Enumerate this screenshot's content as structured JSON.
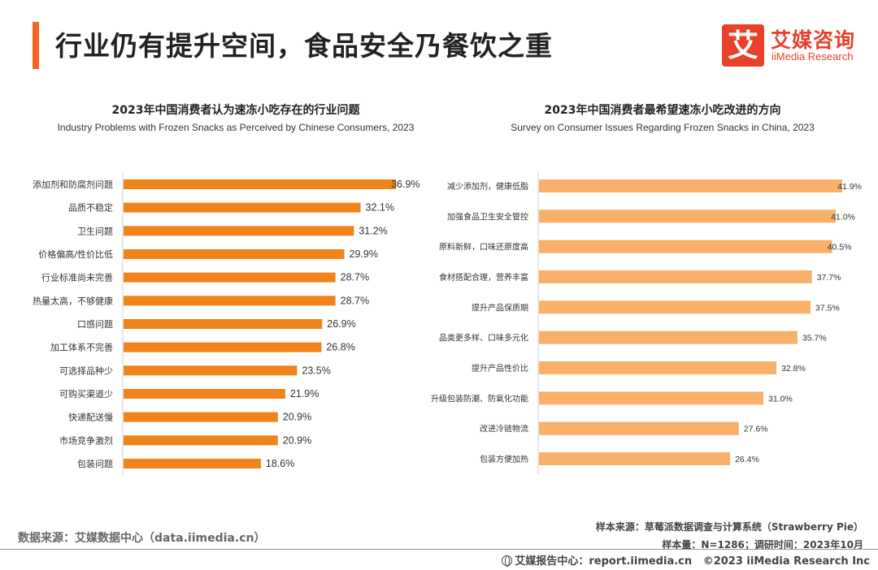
{
  "header": {
    "title": "行业仍有提升空间，食品安全乃餐饮之重",
    "accent_color": "#f26522"
  },
  "logo": {
    "glyph": "艾",
    "name_cn": "艾媒咨询",
    "name_en": "iiMedia Research",
    "color": "#e8402a"
  },
  "chart_data": [
    {
      "type": "bar",
      "orientation": "horizontal",
      "title": "2023年中国消费者认为速冻小吃存在的行业问题",
      "subtitle": "Industry Problems with Frozen Snacks as Perceived by Chinese Consumers, 2023",
      "categories": [
        "添加剂和防腐剂问题",
        "品质不稳定",
        "卫生问题",
        "价格偏高/性价比低",
        "行业标准尚未完善",
        "热量太高，不够健康",
        "口感问题",
        "加工体系不完善",
        "可选择品种少",
        "可购买渠道少",
        "快递配送慢",
        "市场竞争激烈",
        "包装问题"
      ],
      "values": [
        36.9,
        32.1,
        31.2,
        29.9,
        28.7,
        28.7,
        26.9,
        26.8,
        23.5,
        21.9,
        20.9,
        20.9,
        18.6
      ],
      "labels": [
        "36.9%",
        "32.1%",
        "31.2%",
        "29.9%",
        "28.7%",
        "28.7%",
        "26.9%",
        "26.8%",
        "23.5%",
        "21.9%",
        "20.9%",
        "20.9%",
        "18.6%"
      ],
      "color": "#f0831a",
      "xlim": [
        0,
        37
      ],
      "grid": false
    },
    {
      "type": "bar",
      "orientation": "horizontal",
      "title": "2023年中国消费者最希望速冻小吃改进的方向",
      "subtitle": "Survey on Consumer Issues Regarding Frozen Snacks in China, 2023",
      "categories": [
        "减少添加剂，健康低脂",
        "加强食品卫生安全管控",
        "原料新鲜，口味还原度高",
        "食材搭配合理，营养丰富",
        "提升产品保质期",
        "品类更多样、口味多元化",
        "提升产品性价比",
        "升级包装防潮、防氧化功能",
        "改进冷链物流",
        "包装方便加热"
      ],
      "values": [
        41.9,
        41.0,
        40.5,
        37.7,
        37.5,
        35.7,
        32.8,
        31.0,
        27.6,
        26.4
      ],
      "labels": [
        "41.9%",
        "41.0%",
        "40.5%",
        "37.7%",
        "37.5%",
        "35.7%",
        "32.8%",
        "31.0%",
        "27.6%",
        "26.4%"
      ],
      "color": "#f9b06b",
      "xlim": [
        0,
        42
      ],
      "grid": false
    }
  ],
  "footer": {
    "source": "数据来源：艾媒数据中心（data.iimedia.cn）",
    "sample_source": "样本来源：草莓派数据调查与计算系统（Strawberry Pie）",
    "sample_size": "样本量：N=1286；调研时间：2023年10月",
    "report_center": "艾媒报告中心：report.iimedia.cn",
    "copyright": "©2023  iiMedia Research  Inc"
  }
}
